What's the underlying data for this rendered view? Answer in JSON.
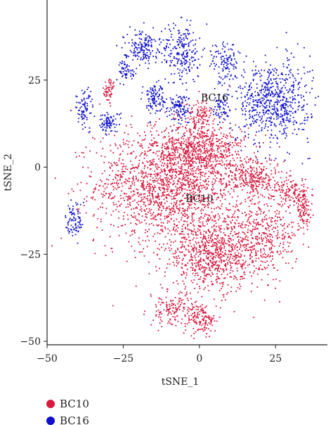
{
  "chart_data": {
    "type": "scatter",
    "title": "",
    "xlabel": "tSNE_1",
    "ylabel": "tSNE_2",
    "xlim": [
      -50,
      42
    ],
    "ylim": [
      -51,
      48
    ],
    "xticks": [
      -50,
      -25,
      0,
      25
    ],
    "yticks": [
      -50,
      -25,
      0,
      25
    ],
    "legend_position": "bottom-left",
    "series": [
      {
        "name": "BC10",
        "color": "#d7193f",
        "clusters": [
          {
            "cx": -10,
            "cy": -5,
            "sx": 16,
            "sy": 11,
            "weight": 30
          },
          {
            "cx": 0,
            "cy": 5,
            "sx": 10,
            "sy": 5,
            "weight": 10
          },
          {
            "cx": 4,
            "cy": -25,
            "sx": 11,
            "sy": 7,
            "weight": 14
          },
          {
            "cx": 20,
            "cy": -20,
            "sx": 8,
            "sy": 7,
            "weight": 7
          },
          {
            "cx": 18,
            "cy": -3,
            "sx": 6,
            "sy": 4,
            "weight": 5
          },
          {
            "cx": 30,
            "cy": -7,
            "sx": 3,
            "sy": 3,
            "weight": 2
          },
          {
            "cx": 34,
            "cy": -12,
            "sx": 2,
            "sy": 4,
            "weight": 2
          },
          {
            "cx": -8,
            "cy": -41,
            "sx": 6,
            "sy": 3,
            "weight": 3
          },
          {
            "cx": 1,
            "cy": -44,
            "sx": 3,
            "sy": 3,
            "weight": 2
          },
          {
            "cx": -30,
            "cy": 22,
            "sx": 1.5,
            "sy": 2.5,
            "weight": 1
          },
          {
            "cx": 0,
            "cy": 15,
            "sx": 3,
            "sy": 3,
            "weight": 2
          }
        ]
      },
      {
        "name": "BC16",
        "color": "#1010cc",
        "clusters": [
          {
            "cx": 24,
            "cy": 19,
            "sx": 8,
            "sy": 8,
            "weight": 12
          },
          {
            "cx": -6,
            "cy": 33,
            "sx": 4,
            "sy": 6,
            "weight": 4
          },
          {
            "cx": -19,
            "cy": 35,
            "sx": 4,
            "sy": 3,
            "weight": 3
          },
          {
            "cx": -15,
            "cy": 20,
            "sx": 2.5,
            "sy": 3,
            "weight": 2
          },
          {
            "cx": -7,
            "cy": 17,
            "sx": 2.5,
            "sy": 3,
            "weight": 2
          },
          {
            "cx": -30,
            "cy": 13,
            "sx": 2.5,
            "sy": 2,
            "weight": 1.5
          },
          {
            "cx": -38,
            "cy": 17,
            "sx": 2,
            "sy": 4,
            "weight": 1.5
          },
          {
            "cx": 8,
            "cy": 30,
            "sx": 3,
            "sy": 4,
            "weight": 2
          },
          {
            "cx": 7,
            "cy": 17,
            "sx": 2,
            "sy": 3,
            "weight": 1.2
          },
          {
            "cx": -41,
            "cy": -15,
            "sx": 2,
            "sy": 4,
            "weight": 1.5
          },
          {
            "cx": -24,
            "cy": 28,
            "sx": 2,
            "sy": 2,
            "weight": 1
          }
        ]
      }
    ],
    "annotations": [
      {
        "text": "BC16",
        "x": 5,
        "y": 19
      },
      {
        "text": "BC10",
        "x": 0,
        "y": -10
      }
    ],
    "legend": [
      {
        "label": "BC10",
        "color": "#d7193f"
      },
      {
        "label": "BC16",
        "color": "#1010cc"
      }
    ]
  }
}
